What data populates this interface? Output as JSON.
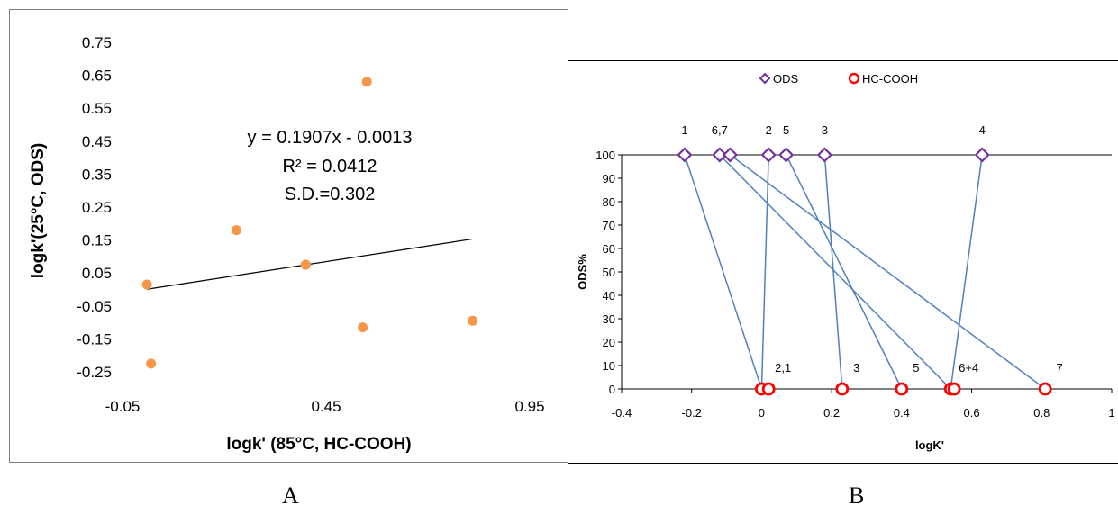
{
  "colors": {
    "scatter_point": "#f79646",
    "trendline": "#000000",
    "ods_marker": "#7030a0",
    "hc_marker": "#ff0000",
    "connector": "#4f81bd"
  },
  "captions": {
    "a": "A",
    "b": "B"
  },
  "chart_data": [
    {
      "type": "scatter",
      "title": "",
      "xlabel": "logk'  (85°C, HC-COOH)",
      "ylabel": "logk'(25°C, ODS)",
      "xlim": [
        -0.05,
        0.95
      ],
      "ylim": [
        -0.25,
        0.75
      ],
      "x_ticks": [
        "-0.05",
        "0.45",
        "0.95"
      ],
      "y_ticks": [
        "0.75",
        "0.65",
        "0.55",
        "0.45",
        "0.35",
        "0.25",
        "0.15",
        "0.05",
        "-0.05",
        "-0.15",
        "-0.25"
      ],
      "points": [
        {
          "x": 0.01,
          "y": 0.015
        },
        {
          "x": 0.02,
          "y": -0.225
        },
        {
          "x": 0.23,
          "y": 0.18
        },
        {
          "x": 0.4,
          "y": 0.075
        },
        {
          "x": 0.54,
          "y": -0.115
        },
        {
          "x": 0.55,
          "y": 0.63
        },
        {
          "x": 0.81,
          "y": -0.095
        }
      ],
      "trendline": {
        "x": [
          0.01,
          0.81
        ],
        "slope": 0.1907,
        "intercept": -0.0013
      },
      "annotations": [
        "y = 0.1907x - 0.0013",
        "R² = 0.0412",
        "S.D.=0.302"
      ],
      "grid": false
    },
    {
      "type": "scatter",
      "title": "",
      "xlabel": "logK'",
      "ylabel": "ODS%",
      "xlim": [
        -0.4,
        1.0
      ],
      "ylim": [
        0,
        100
      ],
      "x_ticks": [
        "-0.4",
        "-0.2",
        "0",
        "0.2",
        "0.4",
        "0.6",
        "0.8",
        "1"
      ],
      "y_ticks": [
        "0",
        "10",
        "20",
        "30",
        "40",
        "50",
        "60",
        "70",
        "80",
        "90",
        "100"
      ],
      "legend": {
        "position": "top-center",
        "entries": [
          "ODS",
          "HC-COOH"
        ]
      },
      "series": [
        {
          "name": "ODS",
          "points": [
            {
              "x": -0.22,
              "y": 100,
              "label": "1"
            },
            {
              "x": -0.12,
              "y": 100,
              "label": "6,7"
            },
            {
              "x": -0.09,
              "y": 100,
              "label": ""
            },
            {
              "x": 0.02,
              "y": 100,
              "label": "2"
            },
            {
              "x": 0.07,
              "y": 100,
              "label": "5"
            },
            {
              "x": 0.18,
              "y": 100,
              "label": "3"
            },
            {
              "x": 0.63,
              "y": 100,
              "label": "4"
            }
          ]
        },
        {
          "name": "HC-COOH",
          "points": [
            {
              "x": 0.0,
              "y": 0,
              "label": ""
            },
            {
              "x": 0.02,
              "y": 0,
              "label": "2,1"
            },
            {
              "x": 0.23,
              "y": 0,
              "label": "3"
            },
            {
              "x": 0.4,
              "y": 0,
              "label": "5"
            },
            {
              "x": 0.54,
              "y": 0,
              "label": ""
            },
            {
              "x": 0.55,
              "y": 0,
              "label": "6+4"
            },
            {
              "x": 0.81,
              "y": 0,
              "label": "7"
            }
          ]
        }
      ],
      "connectors": [
        {
          "from": [
            -0.22,
            100
          ],
          "to": [
            0.0,
            0
          ]
        },
        {
          "from": [
            0.02,
            100
          ],
          "to": [
            0.0,
            0
          ]
        },
        {
          "from": [
            0.18,
            100
          ],
          "to": [
            0.23,
            0
          ]
        },
        {
          "from": [
            0.07,
            100
          ],
          "to": [
            0.4,
            0
          ]
        },
        {
          "from": [
            -0.12,
            100
          ],
          "to": [
            0.54,
            0
          ]
        },
        {
          "from": [
            0.63,
            100
          ],
          "to": [
            0.54,
            0
          ]
        },
        {
          "from": [
            -0.09,
            100
          ],
          "to": [
            0.81,
            0
          ]
        }
      ],
      "grid": false
    }
  ]
}
